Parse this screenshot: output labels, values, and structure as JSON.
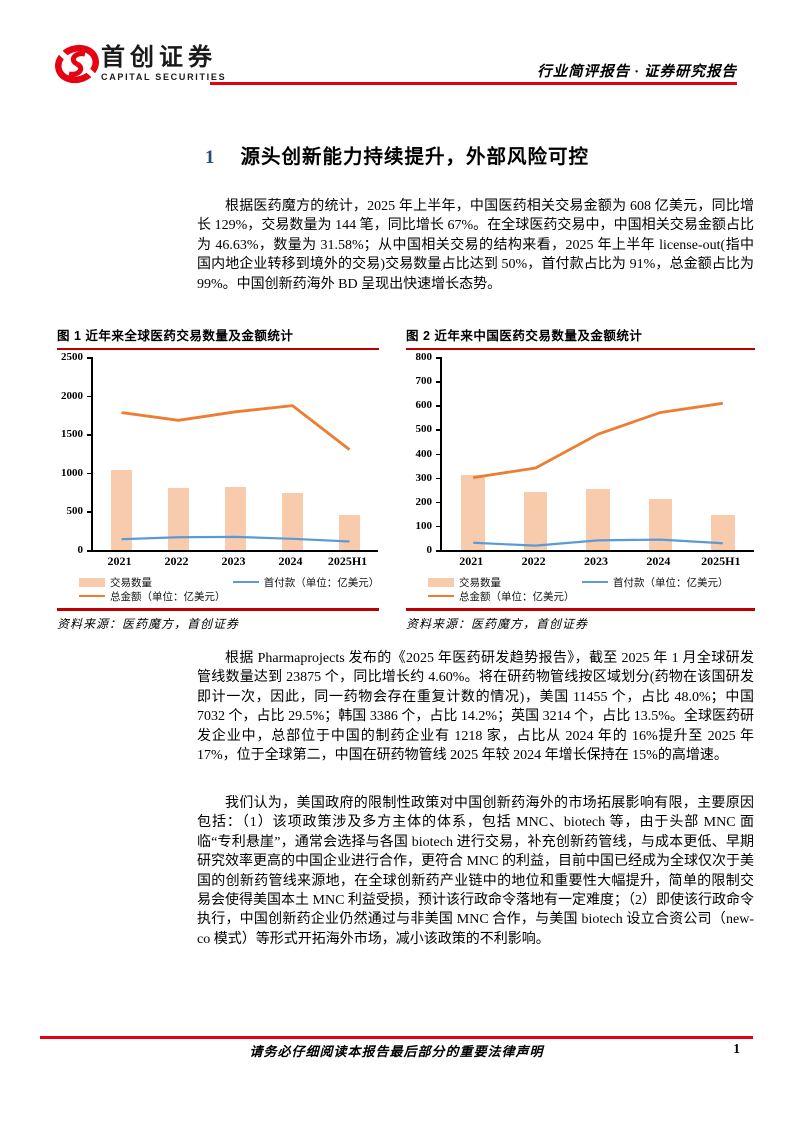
{
  "header": {
    "brand_cn": "首创证券",
    "brand_en": "CAPITAL SECURITIES",
    "report_type": "行业简评报告 · 证券研究报告"
  },
  "section": {
    "number": "1",
    "title": "源头创新能力持续提升，外部风险可控"
  },
  "paragraphs": [
    "根据医药魔方的统计，2025 年上半年，中国医药相关交易金额为 608 亿美元，同比增长 129%，交易数量为 144 笔，同比增长 67%。在全球医药交易中，中国相关交易金额占比为 46.63%，数量为 31.58%；从中国相关交易的结构来看，2025 年上半年 license-out(指中国内地企业转移到境外的交易)交易数量占比达到 50%，首付款占比为 91%，总金额占比为 99%。中国创新药海外 BD 呈现出快速增长态势。",
    "根据 Pharmaprojects 发布的《2025 年医药研发趋势报告》，截至 2025 年 1 月全球研发管线数量达到 23875 个，同比增长约 4.60%。将在研药物管线按区域划分(药物在该国研发即计一次，因此，同一药物会存在重复计数的情况)，美国 11455 个，占比 48.0%；中国 7032 个，占比 29.5%；韩国 3386 个，占比 14.2%；英国 3214 个，占比 13.5%。全球医药研发企业中，总部位于中国的制药企业有 1218 家，占比从 2024 年的 16%提升至 2025 年 17%，位于全球第二，中国在研药物管线 2025 年较 2024 年增长保持在 15%的高增速。",
    "我们认为，美国政府的限制性政策对中国创新药海外的市场拓展影响有限，主要原因包括：（1）该项政策涉及多方主体的体系，包括 MNC、biotech 等，由于头部 MNC 面临“专利悬崖”，通常会选择与各国 biotech 进行交易，补充创新药管线，与成本更低、早期研究效率更高的中国企业进行合作，更符合 MNC 的利益，目前中国已经成为全球仅次于美国的创新药管线来源地，在全球创新药产业链中的地位和重要性大幅提升，简单的限制交易会使得美国本土 MNC 利益受损，预计该行政命令落地有一定难度；（2）即使该行政命令执行，中国创新药企业仍然通过与非美国 MNC 合作，与美国 biotech 设立合资公司（new-co 模式）等形式开拓海外市场，减小该政策的不利影响。"
  ],
  "figures": [
    {
      "caption": "图 1 近年来全球医药交易数量及金额统计",
      "source": "资料来源：医药魔方，首创证券"
    },
    {
      "caption": "图 2 近年来中国医药交易数量及金额统计",
      "source": "资料来源：医药魔方，首创证券"
    }
  ],
  "legend": {
    "bar": "交易数量",
    "upfront": "首付款（单位：亿美元）",
    "total": "总金额（单位：亿美元）"
  },
  "colors": {
    "accent_red": "#e60012",
    "dark_red": "#c00000",
    "bar_fill": "#f8cbad",
    "total_line": "#ed7d31",
    "upfront_line": "#5b9bd5",
    "section_number_blue": "#1f4e79"
  },
  "chart_data": [
    {
      "type": "bar",
      "title": "图 1 近年来全球医药交易数量及金额统计",
      "categories": [
        "2021",
        "2022",
        "2023",
        "2024",
        "2025H1"
      ],
      "series": [
        {
          "name": "交易数量",
          "type": "bar",
          "color": "#f8cbad",
          "values": [
            1030,
            800,
            815,
            735,
            456
          ]
        },
        {
          "name": "总金额（单位：亿美元）",
          "type": "line",
          "color": "#ed7d31",
          "values": [
            1780,
            1680,
            1790,
            1870,
            1300
          ]
        },
        {
          "name": "首付款（单位：亿美元）",
          "type": "line",
          "color": "#5b9bd5",
          "values": [
            140,
            165,
            170,
            145,
            110
          ]
        }
      ],
      "xlabel": "",
      "ylabel": "",
      "ylim": [
        0,
        2500
      ],
      "ytick_step": 500,
      "grid": false,
      "legend_position": "bottom"
    },
    {
      "type": "bar",
      "title": "图 2 近年来中国医药交易数量及金额统计",
      "categories": [
        "2021",
        "2022",
        "2023",
        "2024",
        "2025H1"
      ],
      "series": [
        {
          "name": "交易数量",
          "type": "bar",
          "color": "#f8cbad",
          "values": [
            310,
            240,
            252,
            213,
            144
          ]
        },
        {
          "name": "总金额（单位：亿美元）",
          "type": "line",
          "color": "#ed7d31",
          "values": [
            300,
            340,
            480,
            570,
            608
          ]
        },
        {
          "name": "首付款（单位：亿美元）",
          "type": "line",
          "color": "#5b9bd5",
          "values": [
            30,
            18,
            40,
            43,
            28
          ]
        }
      ],
      "xlabel": "",
      "ylabel": "",
      "ylim": [
        0,
        800
      ],
      "ytick_step": 100,
      "grid": false,
      "legend_position": "bottom"
    }
  ],
  "footer": {
    "disclaimer": "请务必仔细阅读本报告最后部分的重要法律声明",
    "page_number": "1"
  }
}
